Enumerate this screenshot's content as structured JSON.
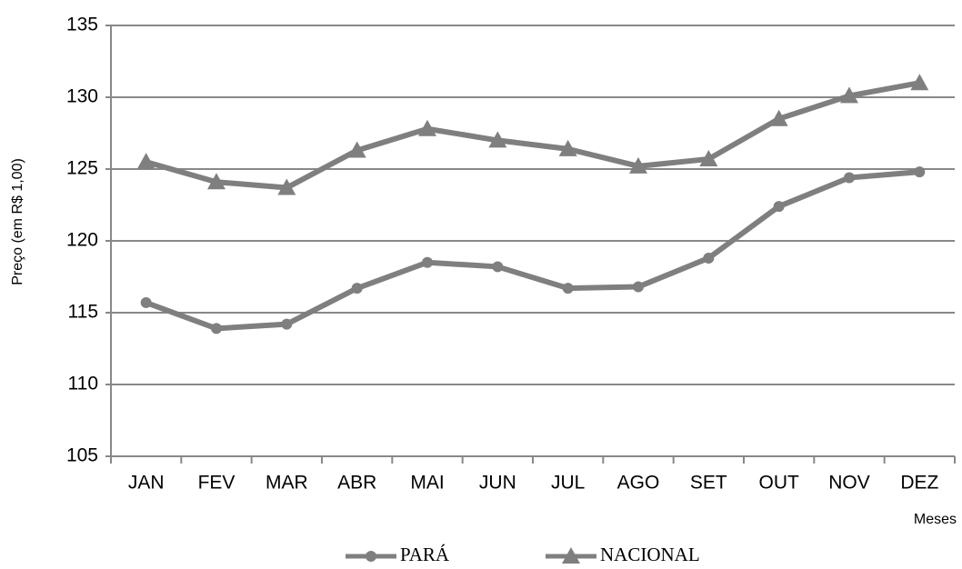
{
  "chart_data": {
    "type": "line",
    "y_label": "Preço (em R$ 1,00)",
    "x_label": "Meses",
    "categories": [
      "JAN",
      "FEV",
      "MAR",
      "ABR",
      "MAI",
      "JUN",
      "JUL",
      "AGO",
      "SET",
      "OUT",
      "NOV",
      "DEZ"
    ],
    "series": [
      {
        "name": "PARÁ",
        "color": "#7f7f7f",
        "marker": "circle",
        "values": [
          115.7,
          113.9,
          114.2,
          116.7,
          118.5,
          118.2,
          116.7,
          116.8,
          118.8,
          122.4,
          124.4,
          124.8
        ]
      },
      {
        "name": "NACIONAL",
        "color": "#7f7f7f",
        "marker": "triangle",
        "values": [
          125.5,
          124.1,
          123.7,
          126.3,
          127.8,
          127.0,
          126.4,
          125.2,
          125.7,
          128.5,
          130.1,
          131.0
        ]
      }
    ],
    "ylim": [
      105,
      135
    ],
    "yticks": [
      105,
      110,
      115,
      120,
      125,
      130,
      135
    ],
    "grid": true
  }
}
